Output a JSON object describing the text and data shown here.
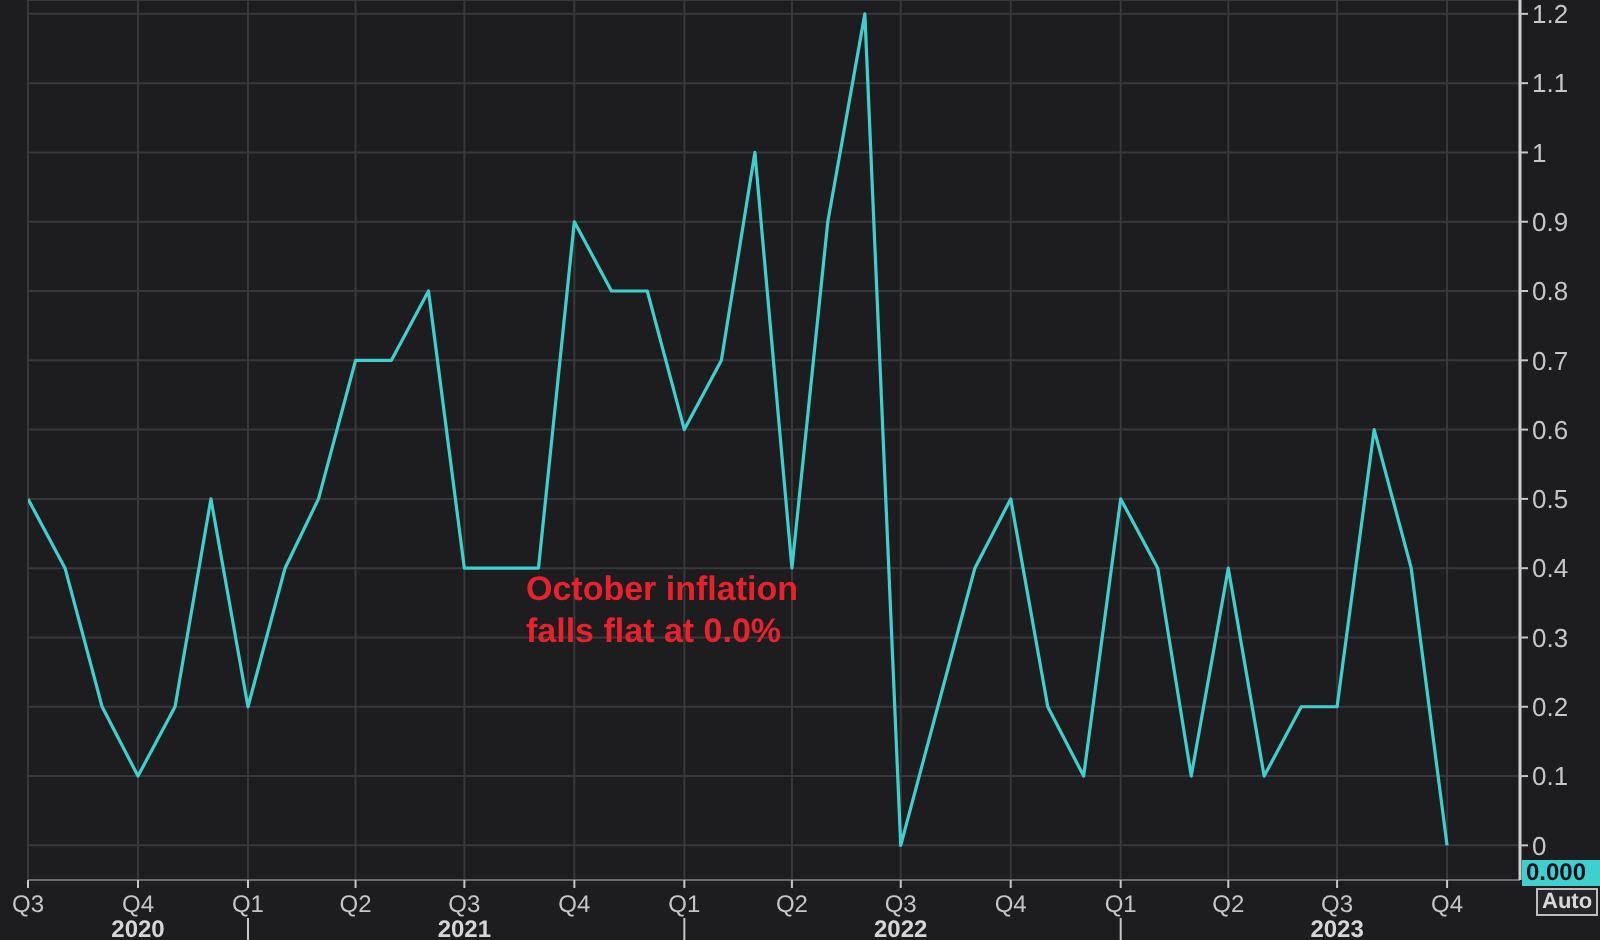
{
  "chart_data": {
    "type": "line",
    "x": [
      "2020-07",
      "2020-08",
      "2020-09",
      "2020-10",
      "2020-11",
      "2020-12",
      "2021-01",
      "2021-02",
      "2021-03",
      "2021-04",
      "2021-05",
      "2021-06",
      "2021-07",
      "2021-08",
      "2021-09",
      "2021-10",
      "2021-11",
      "2021-12",
      "2022-01",
      "2022-02",
      "2022-03",
      "2022-04",
      "2022-05",
      "2022-06",
      "2022-07",
      "2022-08",
      "2022-09",
      "2022-10",
      "2022-11",
      "2022-12",
      "2023-01",
      "2023-02",
      "2023-03",
      "2023-04",
      "2023-05",
      "2023-06",
      "2023-07",
      "2023-08",
      "2023-09",
      "2023-10"
    ],
    "values": [
      0.5,
      0.4,
      0.2,
      0.1,
      0.2,
      0.5,
      0.2,
      0.4,
      0.5,
      0.7,
      0.7,
      0.8,
      0.4,
      0.4,
      0.4,
      0.9,
      0.8,
      0.8,
      0.6,
      0.7,
      1.0,
      0.4,
      0.9,
      1.2,
      0.0,
      0.2,
      0.4,
      0.5,
      0.2,
      0.1,
      0.5,
      0.4,
      0.1,
      0.4,
      0.1,
      0.2,
      0.2,
      0.6,
      0.4,
      0.0
    ],
    "color": "#3fcfcf",
    "xlim": [
      "2020-07-01",
      "2023-12-01"
    ],
    "xticks": [
      {
        "value": "2020-07",
        "label": "Q3"
      },
      {
        "value": "2020-10",
        "label": "Q4\n2020"
      },
      {
        "value": "2021-01",
        "label": "Q1"
      },
      {
        "value": "2021-04",
        "label": "Q2"
      },
      {
        "value": "2021-07",
        "label": "Q3\n2021"
      },
      {
        "value": "2021-10",
        "label": "Q4"
      },
      {
        "value": "2022-01",
        "label": "Q1"
      },
      {
        "value": "2022-04",
        "label": "Q2"
      },
      {
        "value": "2022-07",
        "label": "Q3\n2022"
      },
      {
        "value": "2022-10",
        "label": "Q4"
      },
      {
        "value": "2023-01",
        "label": "Q1"
      },
      {
        "value": "2023-04",
        "label": "Q2"
      },
      {
        "value": "2023-07",
        "label": "Q3\n2023"
      },
      {
        "value": "2023-10",
        "label": "Q4"
      }
    ],
    "ylim": [
      -0.05,
      1.22
    ],
    "yticks": [
      0,
      0.1,
      0.2,
      0.3,
      0.4,
      0.5,
      0.6,
      0.7,
      0.8,
      0.9,
      1,
      1.1,
      1.2
    ],
    "grid": true,
    "annotations": [
      "October inflation\nfalls flat at 0.0%",
      "0.000",
      "Auto"
    ]
  }
}
